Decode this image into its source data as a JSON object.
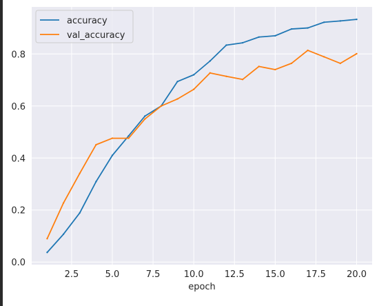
{
  "chart_data": {
    "type": "line",
    "title": "",
    "xlabel": "epoch",
    "ylabel": "",
    "xlim": [
      0.05,
      20.95
    ],
    "ylim": [
      -0.01,
      0.981
    ],
    "xticks": [
      2.5,
      5.0,
      7.5,
      10.0,
      12.5,
      15.0,
      17.5,
      20.0
    ],
    "xtick_labels": [
      "2.5",
      "5.0",
      "7.5",
      "10.0",
      "12.5",
      "15.0",
      "17.5",
      "20.0"
    ],
    "yticks": [
      0.0,
      0.2,
      0.4,
      0.6,
      0.8
    ],
    "ytick_labels": [
      "0.0",
      "0.2",
      "0.4",
      "0.6",
      "0.8"
    ],
    "grid": true,
    "legend_position": "top-left",
    "x": [
      1,
      2,
      3,
      4,
      5,
      6,
      7,
      8,
      9,
      10,
      11,
      12,
      13,
      14,
      15,
      16,
      17,
      18,
      19,
      20
    ],
    "series": [
      {
        "name": "accuracy",
        "color": "#1f77b4",
        "values": [
          0.037,
          0.107,
          0.189,
          0.309,
          0.41,
          0.485,
          0.561,
          0.6,
          0.694,
          0.72,
          0.773,
          0.834,
          0.843,
          0.865,
          0.87,
          0.896,
          0.9,
          0.922,
          0.927,
          0.933
        ]
      },
      {
        "name": "val_accuracy",
        "color": "#ff7f0e",
        "values": [
          0.09,
          0.227,
          0.341,
          0.451,
          0.476,
          0.476,
          0.55,
          0.6,
          0.627,
          0.664,
          0.727,
          0.714,
          0.702,
          0.752,
          0.74,
          0.764,
          0.814,
          0.789,
          0.764,
          0.801
        ]
      }
    ]
  }
}
